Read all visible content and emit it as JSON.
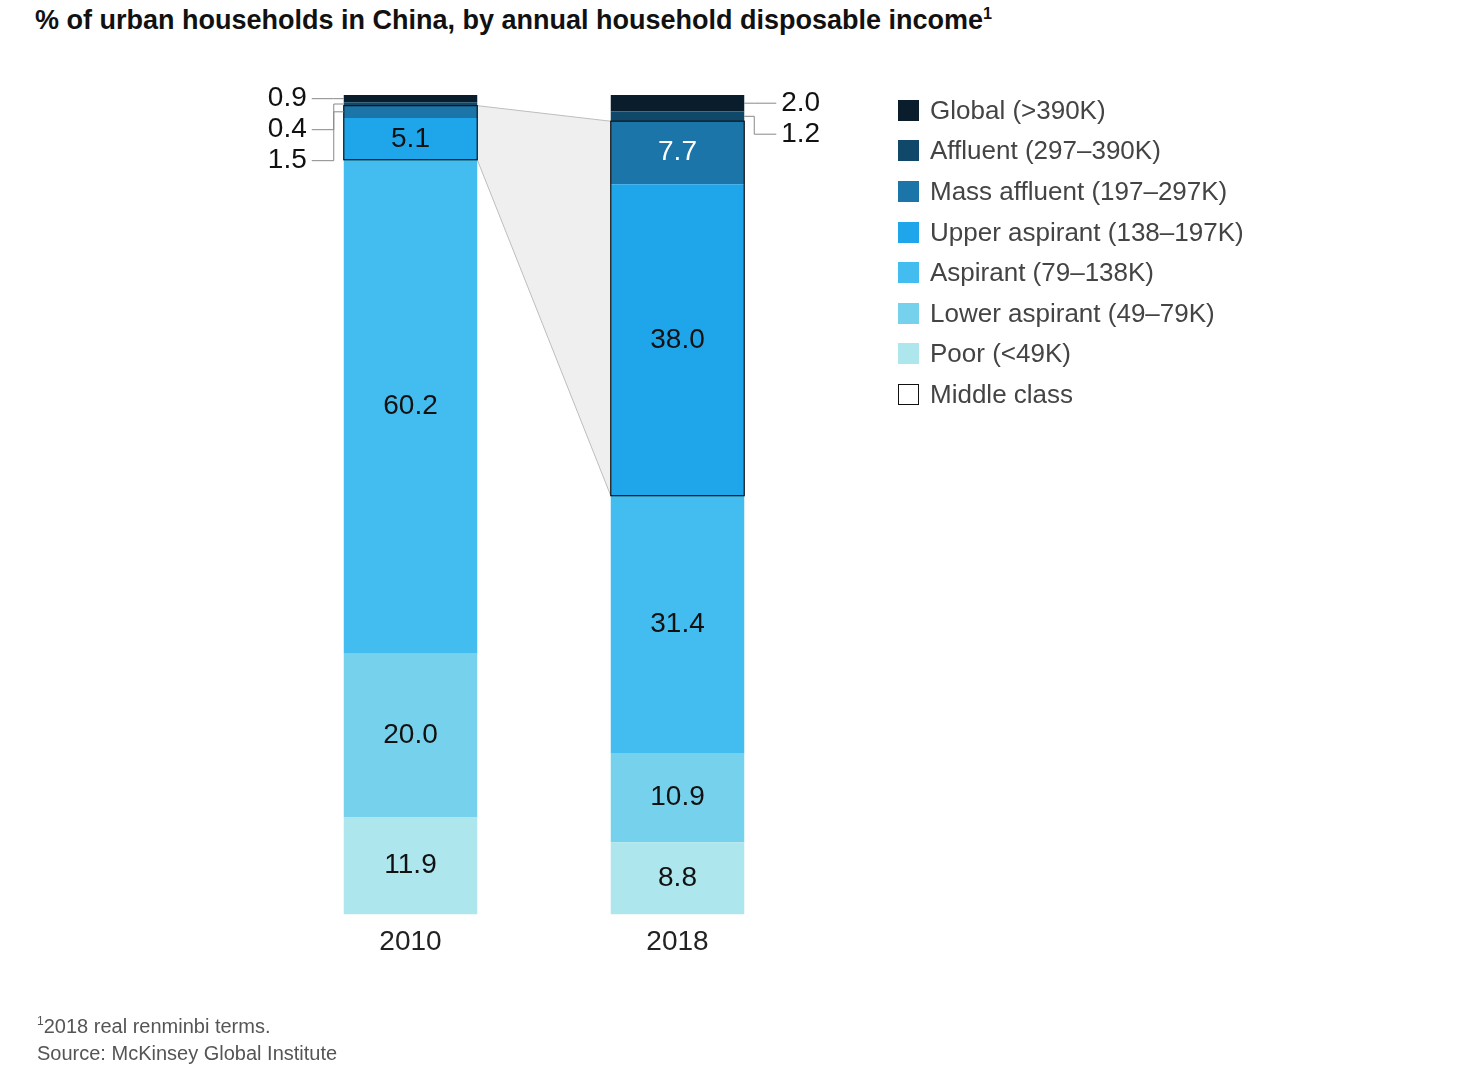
{
  "chart_data": {
    "type": "bar",
    "title": "% of urban households in China, by annual household disposable income",
    "title_note": "1",
    "footnote": {
      "marker": "1",
      "text": "2018 real renminbi terms."
    },
    "source": "Source: McKinsey Global Institute",
    "categories": [
      "2010",
      "2018"
    ],
    "stacked": true,
    "data_labels": true,
    "tick_labels": "x",
    "grid": false,
    "legend": "right",
    "ylim": [
      0,
      100
    ],
    "series": [
      {
        "name": "Poor (<49K)",
        "color": "#aee6ee",
        "values": [
          11.9,
          8.8
        ],
        "value_labels": [
          "11.9",
          "8.8"
        ]
      },
      {
        "name": "Lower aspirant (49–79K)",
        "color": "#76d2ec",
        "values": [
          20.0,
          10.9
        ],
        "value_labels": [
          "20.0",
          "10.9"
        ]
      },
      {
        "name": "Aspirant (79–138K)",
        "color": "#43bdef",
        "values": [
          60.2,
          31.4
        ],
        "value_labels": [
          "60.2",
          "31.4"
        ]
      },
      {
        "name": "Upper aspirant (138–197K)",
        "color": "#1fa5ea",
        "values": [
          5.1,
          38.0
        ],
        "value_labels": [
          "5.1",
          "38.0"
        ]
      },
      {
        "name": "Mass affluent (197–297K)",
        "color": "#1b75a8",
        "values": [
          1.5,
          7.7
        ],
        "value_labels": [
          "1.5",
          "7.7"
        ]
      },
      {
        "name": "Affluent (297–390K)",
        "color": "#10486a",
        "values": [
          0.4,
          1.2
        ],
        "value_labels": [
          "0.4",
          "1.2"
        ]
      },
      {
        "name": "Global (>390K)",
        "color": "#0a1d2d",
        "values": [
          0.9,
          2.0
        ],
        "value_labels": [
          "0.9",
          "2.0"
        ]
      }
    ],
    "highlight": {
      "label": "Middle class",
      "series": [
        "Upper aspirant (138–197K)",
        "Mass affluent (197–297K)"
      ]
    }
  }
}
